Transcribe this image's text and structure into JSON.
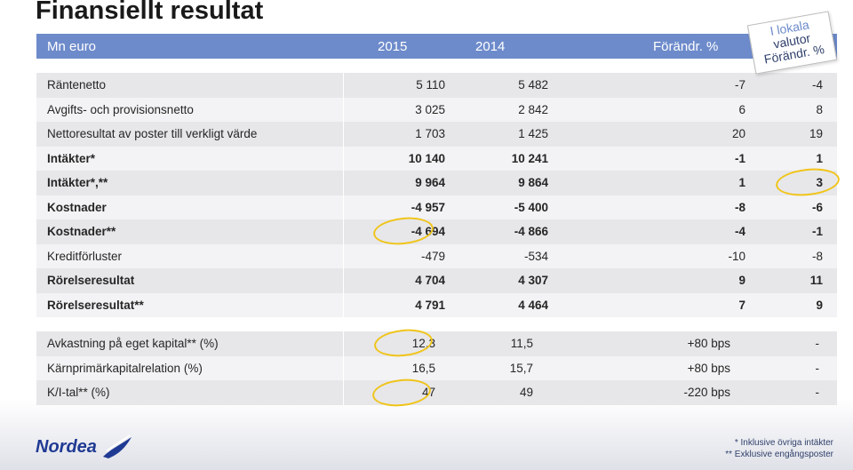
{
  "title": "Finansiellt resultat",
  "header": {
    "label": "Mn euro",
    "col1": "2015",
    "col2": "2014",
    "col3": "Förändr. %"
  },
  "sticker": {
    "line1": "I lokala",
    "line2": "valutor",
    "line3": "Förändr. %"
  },
  "rows": [
    {
      "label": "Räntenetto",
      "v2015": "5 110",
      "v2014": "5 482",
      "chg": "-7",
      "local": "-4",
      "bold": false
    },
    {
      "label": "Avgifts- och provisionsnetto",
      "v2015": "3 025",
      "v2014": "2 842",
      "chg": "6",
      "local": "8",
      "bold": false
    },
    {
      "label": "Nettoresultat av poster till verkligt värde",
      "v2015": "1 703",
      "v2014": "1 425",
      "chg": "20",
      "local": "19",
      "bold": false
    },
    {
      "label": "Intäkter*",
      "v2015": "10 140",
      "v2014": "10 241",
      "chg": "-1",
      "local": "1",
      "bold": true
    },
    {
      "label": "Intäkter*,**",
      "v2015": "9 964",
      "v2014": "9 864",
      "chg": "1",
      "local": "3",
      "bold": true
    },
    {
      "label": "Kostnader",
      "v2015": "-4 957",
      "v2014": "-5 400",
      "chg": "-8",
      "local": "-6",
      "bold": true
    },
    {
      "label": "Kostnader**",
      "v2015": "-4 694",
      "v2014": "-4 866",
      "chg": "-4",
      "local": "-1",
      "bold": true
    },
    {
      "label": "Kreditförluster",
      "v2015": "-479",
      "v2014": "-534",
      "chg": "-10",
      "local": "-8",
      "bold": false
    },
    {
      "label": "Rörelseresultat",
      "v2015": "4 704",
      "v2014": "4 307",
      "chg": "9",
      "local": "11",
      "bold": true
    },
    {
      "label": "Rörelseresultat**",
      "v2015": "4 791",
      "v2014": "4 464",
      "chg": "7",
      "local": "9",
      "bold": true
    }
  ],
  "kpis": [
    {
      "label": "Avkastning på eget kapital** (%)",
      "v2015": "12,3",
      "v2014": "11,5",
      "chg": "+80 bps",
      "local": "-"
    },
    {
      "label": "Kärnprimärkapitalrelation (%)",
      "v2015": "16,5",
      "v2014": "15,7",
      "chg": "+80 bps",
      "local": "-"
    },
    {
      "label": "K/I-tal** (%)",
      "v2015": "47",
      "v2014": "49",
      "chg": "-220 bps",
      "local": "-"
    }
  ],
  "logo_text": "Nordea",
  "footnotes": [
    "* Inklusive övriga intäkter",
    "** Exklusive engångsposter"
  ],
  "colors": {
    "header_bg": "#6d8bcb",
    "highlight_ellipse": "#f0c419",
    "brand": "#1f3a93"
  }
}
